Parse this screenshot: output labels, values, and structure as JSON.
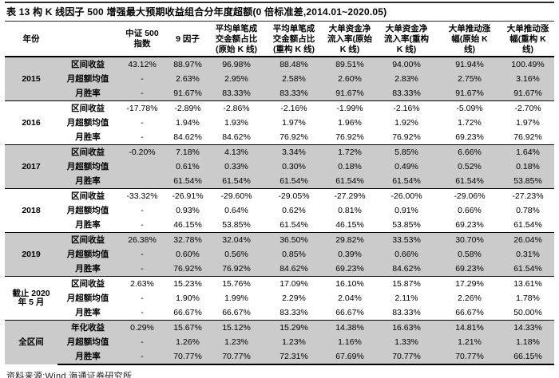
{
  "title": "表 13  构 K 线因子 500 增强最大预期收益组合分年度超额(0 倍标准差,2014.01~2020.05)",
  "source": "资料来源:Wind,海通证券研究所",
  "colors": {
    "row_band": "#cbcbcb",
    "rule": "#000000"
  },
  "table": {
    "year_header": "年份",
    "row_type_header": "",
    "columns": [
      "中证 500\n指数",
      "9 因子",
      "平均单笔成\n交金额占比\n(原始 K 线)",
      "平均单笔成\n交金额占比\n(重构 K 线)",
      "大单资金净\n流入率(原始\nK 线)",
      "大单资金净\n流入率(重构\nK 线)",
      "大单推动涨\n幅(原始 K\n线)",
      "大单推动涨\n幅(重构 K\n线)"
    ],
    "groups": [
      {
        "year": "2015",
        "shaded": true,
        "rows": [
          {
            "label": "区间收益",
            "values": [
              "43.12%",
              "88.97%",
              "96.98%",
              "88.48%",
              "89.51%",
              "94.00%",
              "91.94%",
              "100.49%"
            ]
          },
          {
            "label": "月超额均值",
            "values": [
              "-",
              "2.63%",
              "2.95%",
              "2.58%",
              "2.60%",
              "2.83%",
              "2.75%",
              "3.16%"
            ]
          },
          {
            "label": "月胜率",
            "values": [
              "-",
              "91.67%",
              "83.33%",
              "83.33%",
              "91.67%",
              "83.33%",
              "91.67%",
              "91.67%"
            ]
          }
        ]
      },
      {
        "year": "2016",
        "shaded": false,
        "rows": [
          {
            "label": "区间收益",
            "values": [
              "-17.78%",
              "-2.89%",
              "-2.86%",
              "-2.16%",
              "-1.99%",
              "-2.16%",
              "-5.09%",
              "-2.70%"
            ]
          },
          {
            "label": "月超额均值",
            "values": [
              "-",
              "1.94%",
              "1.93%",
              "1.97%",
              "1.96%",
              "1.92%",
              "1.72%",
              "1.97%"
            ]
          },
          {
            "label": "月胜率",
            "values": [
              "-",
              "84.62%",
              "84.62%",
              "76.92%",
              "76.92%",
              "76.92%",
              "69.23%",
              "76.92%"
            ]
          }
        ]
      },
      {
        "year": "2017",
        "shaded": true,
        "rows": [
          {
            "label": "区间收益",
            "values": [
              "-0.20%",
              "7.18%",
              "4.13%",
              "3.34%",
              "1.72%",
              "5.85%",
              "6.66%",
              "1.64%"
            ]
          },
          {
            "label": "月超额均值",
            "values": [
              "",
              "0.61%",
              "0.33%",
              "0.30%",
              "0.18%",
              "0.49%",
              "0.52%",
              "0.18%"
            ]
          },
          {
            "label": "月胜率",
            "values": [
              "",
              "61.54%",
              "61.54%",
              "61.54%",
              "61.54%",
              "61.54%",
              "61.54%",
              "53.85%"
            ]
          }
        ]
      },
      {
        "year": "2018",
        "shaded": false,
        "rows": [
          {
            "label": "区间收益",
            "values": [
              "-33.32%",
              "-26.91%",
              "-29.60%",
              "-29.05%",
              "-27.29%",
              "-26.00%",
              "-29.06%",
              "-27.23%"
            ]
          },
          {
            "label": "月超额均值",
            "values": [
              "-",
              "0.93%",
              "0.64%",
              "0.62%",
              "0.81%",
              "0.91%",
              "0.66%",
              "0.78%"
            ]
          },
          {
            "label": "月胜率",
            "values": [
              "-",
              "46.15%",
              "53.85%",
              "61.54%",
              "46.15%",
              "53.85%",
              "69.23%",
              "61.54%"
            ]
          }
        ]
      },
      {
        "year": "2019",
        "shaded": true,
        "rows": [
          {
            "label": "区间收益",
            "values": [
              "26.38%",
              "32.78%",
              "32.04%",
              "36.50%",
              "29.82%",
              "33.53%",
              "30.70%",
              "26.04%"
            ]
          },
          {
            "label": "月超额均值",
            "values": [
              "-",
              "0.60%",
              "0.56%",
              "0.85%",
              "0.39%",
              "0.66%",
              "0.58%",
              "0.31%"
            ]
          },
          {
            "label": "月胜率",
            "values": [
              "-",
              "76.92%",
              "76.92%",
              "84.62%",
              "69.23%",
              "84.62%",
              "69.23%",
              "61.54%"
            ]
          }
        ]
      },
      {
        "year": "截止 2020\n年 5 月",
        "shaded": false,
        "rows": [
          {
            "label": "区间收益",
            "values": [
              "2.63%",
              "15.23%",
              "15.76%",
              "17.09%",
              "16.10%",
              "15.87%",
              "17.29%",
              "13.61%"
            ]
          },
          {
            "label": "月超额均值",
            "values": [
              "-",
              "1.90%",
              "1.99%",
              "2.29%",
              "2.04%",
              "2.11%",
              "2.26%",
              "1.78%"
            ]
          },
          {
            "label": "月胜率",
            "values": [
              "-",
              "66.67%",
              "66.67%",
              "83.33%",
              "66.67%",
              "83.33%",
              "66.67%",
              "50.00%"
            ]
          }
        ]
      },
      {
        "year": "全区间",
        "shaded": true,
        "rows": [
          {
            "label": "年化收益",
            "values": [
              "0.29%",
              "15.67%",
              "15.12%",
              "15.29%",
              "14.38%",
              "16.63%",
              "14.81%",
              "14.33%"
            ]
          },
          {
            "label": "月超额均值",
            "values": [
              "-",
              "1.26%",
              "1.23%",
              "1.23%",
              "1.16%",
              "1.33%",
              "1.21%",
              "1.18%"
            ]
          },
          {
            "label": "月胜率",
            "values": [
              "-",
              "70.77%",
              "70.77%",
              "72.31%",
              "67.69%",
              "70.77%",
              "70.77%",
              "66.15%"
            ]
          }
        ]
      }
    ]
  }
}
